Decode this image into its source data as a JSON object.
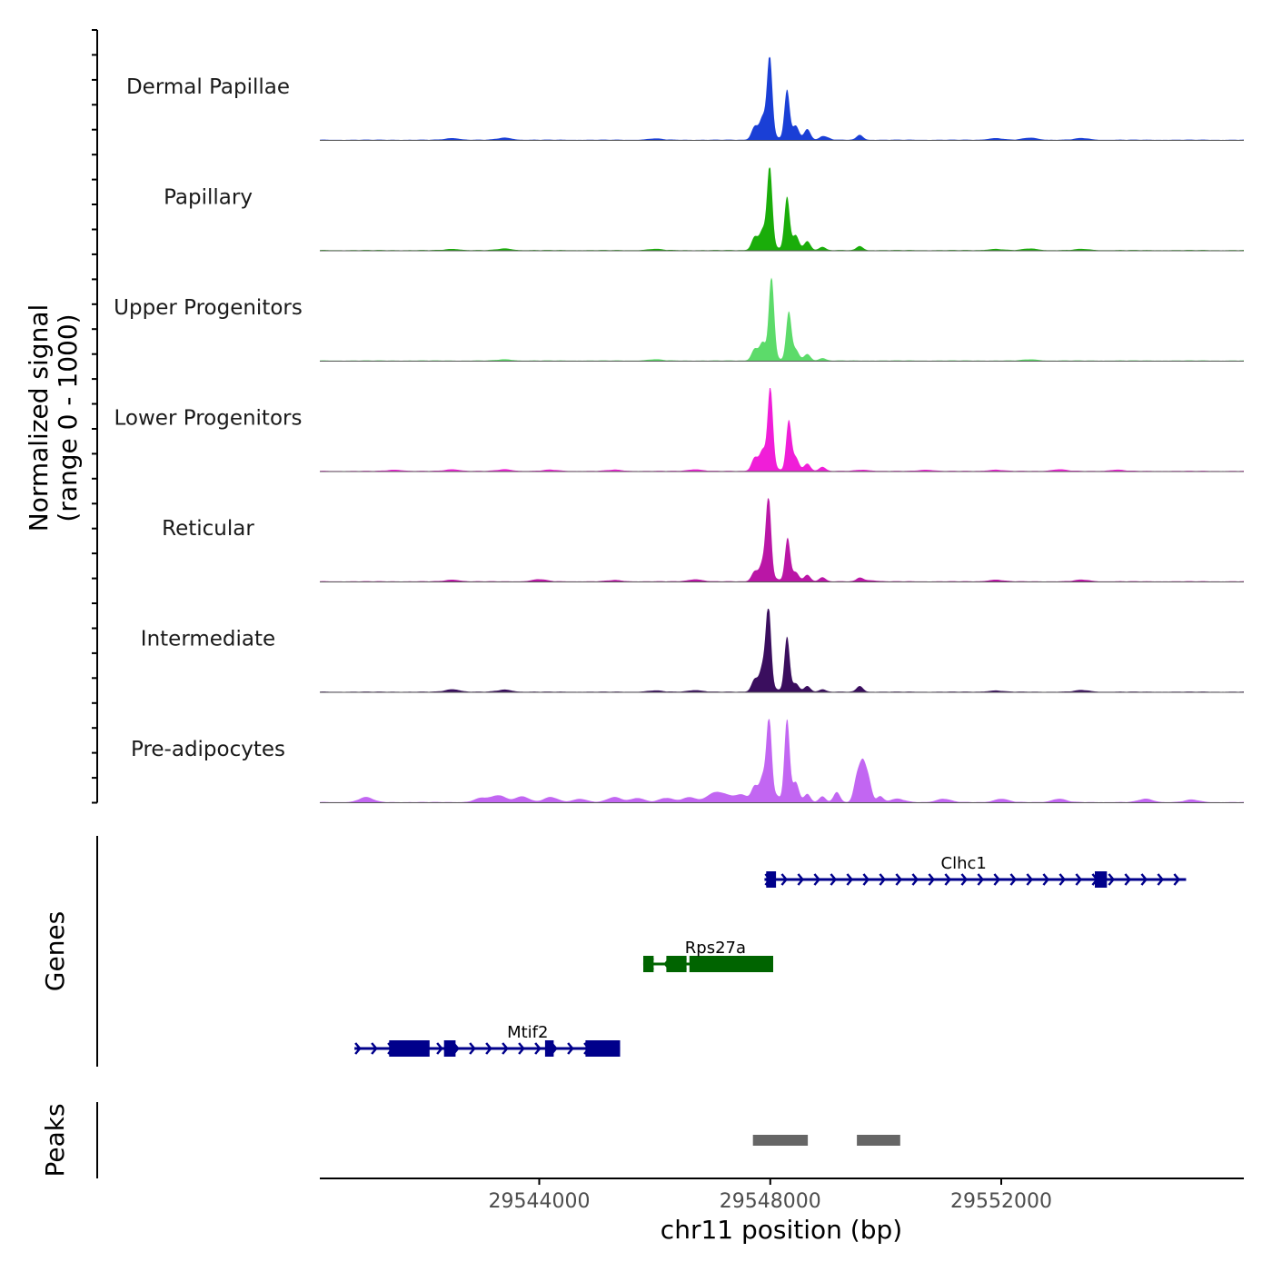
{
  "chart_data": {
    "type": "area",
    "chromosome": "chr11",
    "xlabel": "chr11 position (bp)",
    "xlim": [
      29540200,
      29556200
    ],
    "x_ticks": [
      29544000,
      29548000,
      29552000
    ],
    "x_tick_labels": [
      "29544000",
      "29548000",
      "29552000"
    ],
    "ylabel_line1": "Normalized signal",
    "ylabel_line2": "(range 0 - 1000)",
    "ylim": [
      0,
      1000
    ],
    "genes_label": "Genes",
    "peaks_label": "Peaks",
    "tracks": [
      {
        "name": "Dermal Papillae",
        "color": "#1A3FD6",
        "peaks": [
          [
            29547730,
            160
          ],
          [
            29547870,
            270
          ],
          [
            29547990,
            1000
          ],
          [
            29548110,
            30
          ],
          [
            29548290,
            600
          ],
          [
            29548440,
            170
          ],
          [
            29548640,
            130
          ],
          [
            29548900,
            40
          ],
          [
            29549000,
            20
          ],
          [
            29549550,
            60
          ]
        ],
        "background": [
          [
            29542500,
            20
          ],
          [
            29543400,
            25
          ],
          [
            29546000,
            15
          ],
          [
            29551900,
            20
          ],
          [
            29552500,
            25
          ],
          [
            29553400,
            20
          ]
        ]
      },
      {
        "name": "Papillary",
        "color": "#1AAD0A",
        "peaks": [
          [
            29547730,
            160
          ],
          [
            29547870,
            240
          ],
          [
            29547990,
            1000
          ],
          [
            29548110,
            30
          ],
          [
            29548290,
            640
          ],
          [
            29548440,
            180
          ],
          [
            29548640,
            110
          ],
          [
            29548900,
            40
          ],
          [
            29549550,
            50
          ]
        ],
        "background": [
          [
            29542500,
            15
          ],
          [
            29543400,
            20
          ],
          [
            29546000,
            15
          ],
          [
            29551900,
            15
          ],
          [
            29552500,
            20
          ],
          [
            29553400,
            15
          ]
        ]
      },
      {
        "name": "Upper Progenitors",
        "color": "#5CDB6A",
        "peaks": [
          [
            29547730,
            140
          ],
          [
            29547870,
            220
          ],
          [
            29548020,
            1000
          ],
          [
            29548110,
            30
          ],
          [
            29548320,
            580
          ],
          [
            29548440,
            130
          ],
          [
            29548640,
            80
          ],
          [
            29548900,
            30
          ]
        ],
        "background": [
          [
            29543400,
            15
          ],
          [
            29546000,
            15
          ],
          [
            29552500,
            15
          ]
        ]
      },
      {
        "name": "Lower Progenitors",
        "color": "#F01ED8",
        "peaks": [
          [
            29547730,
            160
          ],
          [
            29547870,
            250
          ],
          [
            29548000,
            1000
          ],
          [
            29548110,
            30
          ],
          [
            29548320,
            600
          ],
          [
            29548440,
            160
          ],
          [
            29548640,
            90
          ],
          [
            29548900,
            50
          ]
        ],
        "background": [
          [
            29541500,
            15
          ],
          [
            29542500,
            20
          ],
          [
            29543400,
            20
          ],
          [
            29544200,
            15
          ],
          [
            29545300,
            15
          ],
          [
            29546700,
            20
          ],
          [
            29549600,
            15
          ],
          [
            29550700,
            15
          ],
          [
            29551900,
            15
          ],
          [
            29553000,
            20
          ],
          [
            29554000,
            15
          ]
        ]
      },
      {
        "name": "Reticular",
        "color": "#BA16A6",
        "peaks": [
          [
            29547730,
            120
          ],
          [
            29547870,
            220
          ],
          [
            29547970,
            1000
          ],
          [
            29548110,
            30
          ],
          [
            29548300,
            520
          ],
          [
            29548440,
            110
          ],
          [
            29548640,
            80
          ],
          [
            29548900,
            50
          ],
          [
            29549550,
            40
          ]
        ],
        "background": [
          [
            29542500,
            20
          ],
          [
            29544000,
            25
          ],
          [
            29545300,
            15
          ],
          [
            29546700,
            25
          ],
          [
            29549700,
            15
          ],
          [
            29551900,
            20
          ],
          [
            29553400,
            20
          ]
        ]
      },
      {
        "name": "Intermediate",
        "color": "#3A0E5E",
        "peaks": [
          [
            29547730,
            150
          ],
          [
            29547870,
            300
          ],
          [
            29547970,
            1000
          ],
          [
            29548110,
            30
          ],
          [
            29548290,
            660
          ],
          [
            29548440,
            100
          ],
          [
            29548640,
            70
          ],
          [
            29548900,
            30
          ],
          [
            29549550,
            70
          ]
        ],
        "background": [
          [
            29542500,
            30
          ],
          [
            29543400,
            25
          ],
          [
            29546000,
            15
          ],
          [
            29546700,
            20
          ],
          [
            29551900,
            15
          ],
          [
            29553400,
            20
          ]
        ]
      },
      {
        "name": "Pre-adipocytes",
        "color": "#C266F2",
        "peaks": [
          [
            29547730,
            180
          ],
          [
            29547870,
            300
          ],
          [
            29547980,
            1000
          ],
          [
            29548110,
            80
          ],
          [
            29548290,
            1000
          ],
          [
            29548440,
            240
          ],
          [
            29548640,
            100
          ],
          [
            29548900,
            70
          ],
          [
            29549150,
            120
          ],
          [
            29549500,
            280
          ],
          [
            29549600,
            420
          ],
          [
            29549700,
            260
          ],
          [
            29549900,
            70
          ]
        ],
        "background": [
          [
            29541000,
            60
          ],
          [
            29543000,
            50
          ],
          [
            29543300,
            80
          ],
          [
            29543700,
            70
          ],
          [
            29544200,
            60
          ],
          [
            29544700,
            40
          ],
          [
            29545300,
            60
          ],
          [
            29545700,
            50
          ],
          [
            29546200,
            50
          ],
          [
            29546600,
            60
          ],
          [
            29547000,
            90
          ],
          [
            29547200,
            80
          ],
          [
            29547500,
            90
          ],
          [
            29550200,
            40
          ],
          [
            29551000,
            40
          ],
          [
            29552000,
            40
          ],
          [
            29553000,
            40
          ],
          [
            29554500,
            40
          ],
          [
            29555300,
            30
          ]
        ]
      }
    ],
    "genes": [
      {
        "name": "Clhc1",
        "strand": "+",
        "color": "#00008B",
        "start": 29547900,
        "end": 29555200,
        "exons": [
          [
            29547930,
            29548100
          ],
          [
            29553620,
            29553830
          ]
        ],
        "row": 1
      },
      {
        "name": "Rps27a",
        "strand": "-",
        "color": "#006400",
        "start": 29545800,
        "end": 29548050,
        "exons": [
          [
            29545800,
            29545980
          ],
          [
            29546200,
            29546550
          ],
          [
            29546600,
            29548050
          ]
        ],
        "row": 2
      },
      {
        "name": "Mtif2",
        "strand": "+",
        "color": "#00008B",
        "start": 29540800,
        "end": 29545400,
        "exons": [
          [
            29541400,
            29542100
          ],
          [
            29542350,
            29542550
          ],
          [
            29544100,
            29544250
          ],
          [
            29544800,
            29545400
          ]
        ],
        "row": 3
      }
    ],
    "peak_regions": [
      [
        29547700,
        29548650
      ],
      [
        29549500,
        29550250
      ]
    ]
  }
}
